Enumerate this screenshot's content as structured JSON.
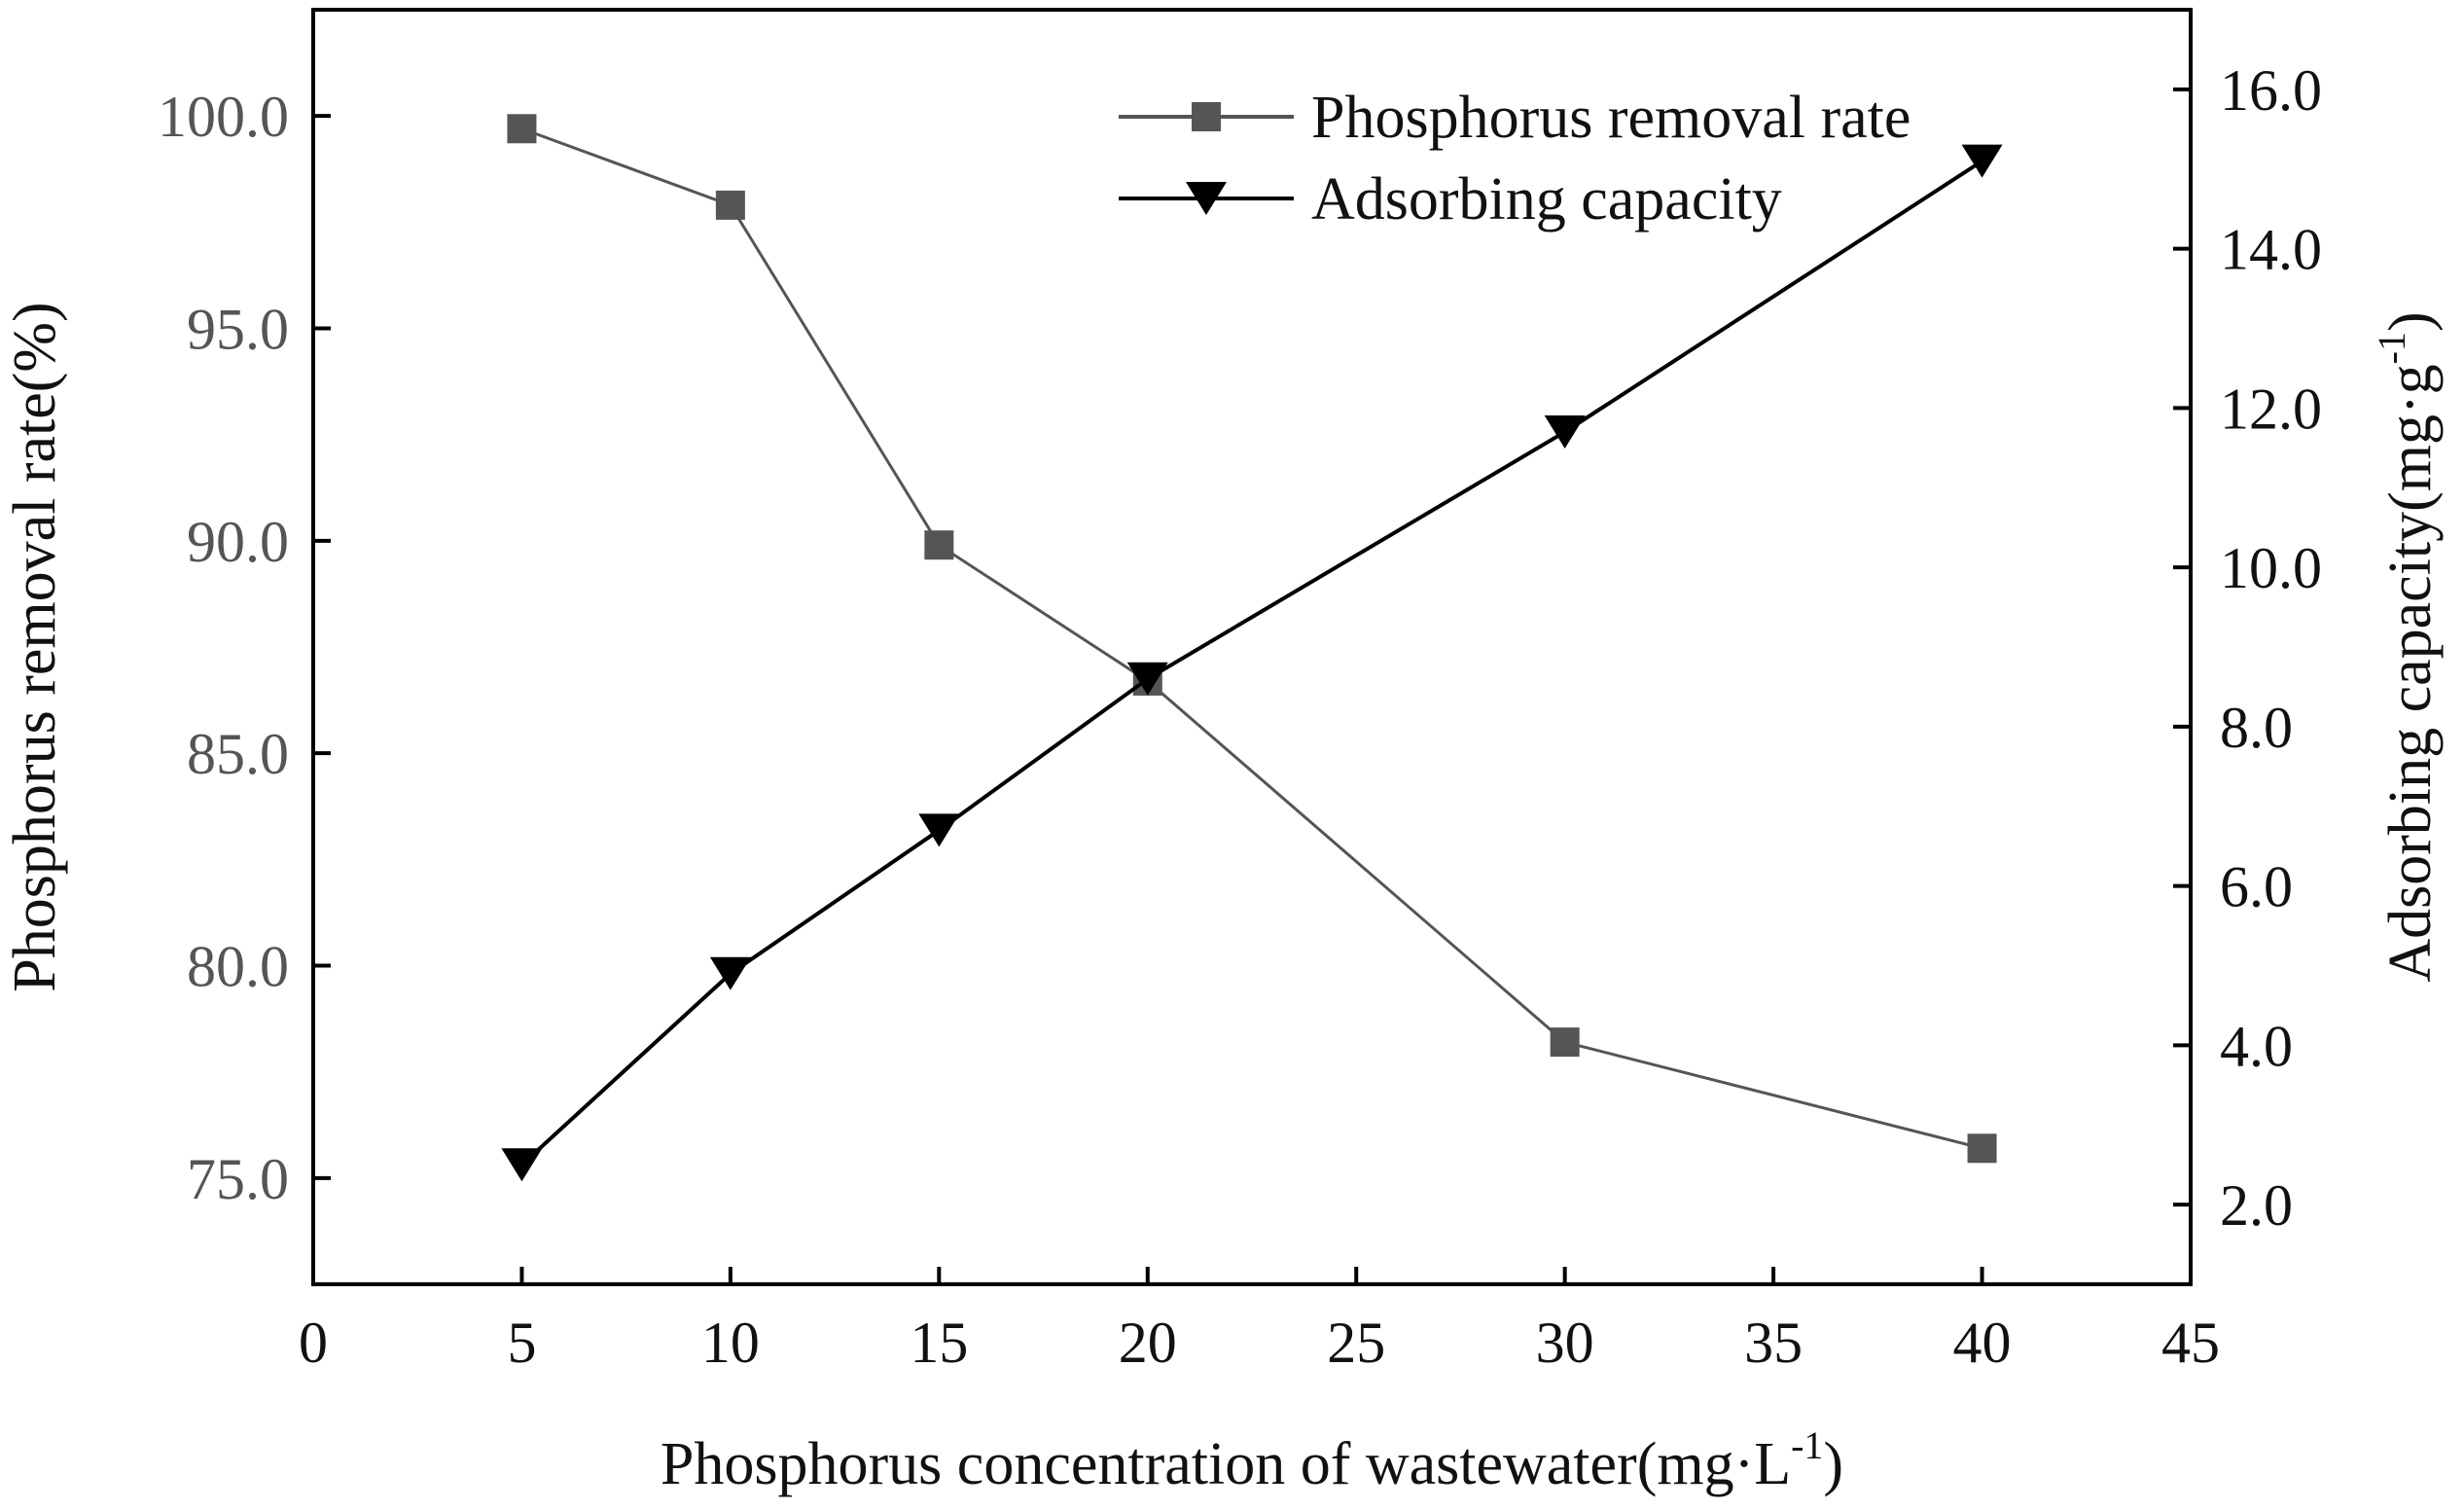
{
  "chart_data": {
    "type": "line",
    "title": "",
    "xlabel": "Phosphorus concentration of wastewater(mg·L",
    "xlabel_sup": "-1",
    "xlabel_close": ")",
    "ylabel_left": "Phosphorus removal rate(%)",
    "ylabel_right": "Adsorbing capacity(mg·g",
    "ylabel_right_sup": "-1",
    "ylabel_right_close": ")",
    "xlim": [
      0,
      45
    ],
    "ylim_left": [
      72.5,
      102.5
    ],
    "ylim_right": [
      1.0,
      17.0
    ],
    "x_ticks": [
      0,
      5,
      10,
      15,
      20,
      25,
      30,
      35,
      40,
      45
    ],
    "x_tick_labels": [
      "0",
      "5",
      "10",
      "15",
      "20",
      "25",
      "30",
      "35",
      "40",
      "45"
    ],
    "y_left_ticks": [
      75,
      80,
      85,
      90,
      95,
      100
    ],
    "y_left_tick_labels": [
      "75.0",
      "80.0",
      "85.0",
      "90.0",
      "95.0",
      "100.0"
    ],
    "y_right_ticks": [
      2,
      4,
      6,
      8,
      10,
      12,
      14,
      16
    ],
    "y_right_tick_labels": [
      "2.0",
      "4.0",
      "6.0",
      "8.0",
      "10.0",
      "12.0",
      "14.0",
      "16.0"
    ],
    "grid": false,
    "legend_position": "top-right",
    "series": [
      {
        "name": "Phosphorus removal rate",
        "axis": "left",
        "marker": "square",
        "color": "#555555",
        "x": [
          5,
          10,
          15,
          20,
          30,
          40
        ],
        "values": [
          99.7,
          97.9,
          89.9,
          86.7,
          78.2,
          75.7
        ]
      },
      {
        "name": "Adsorbing capacity",
        "axis": "right",
        "marker": "triangle-down",
        "color": "#000000",
        "x": [
          5,
          10,
          15,
          20,
          30,
          40
        ],
        "values": [
          2.5,
          4.9,
          6.7,
          8.6,
          11.7,
          15.1
        ]
      }
    ]
  }
}
